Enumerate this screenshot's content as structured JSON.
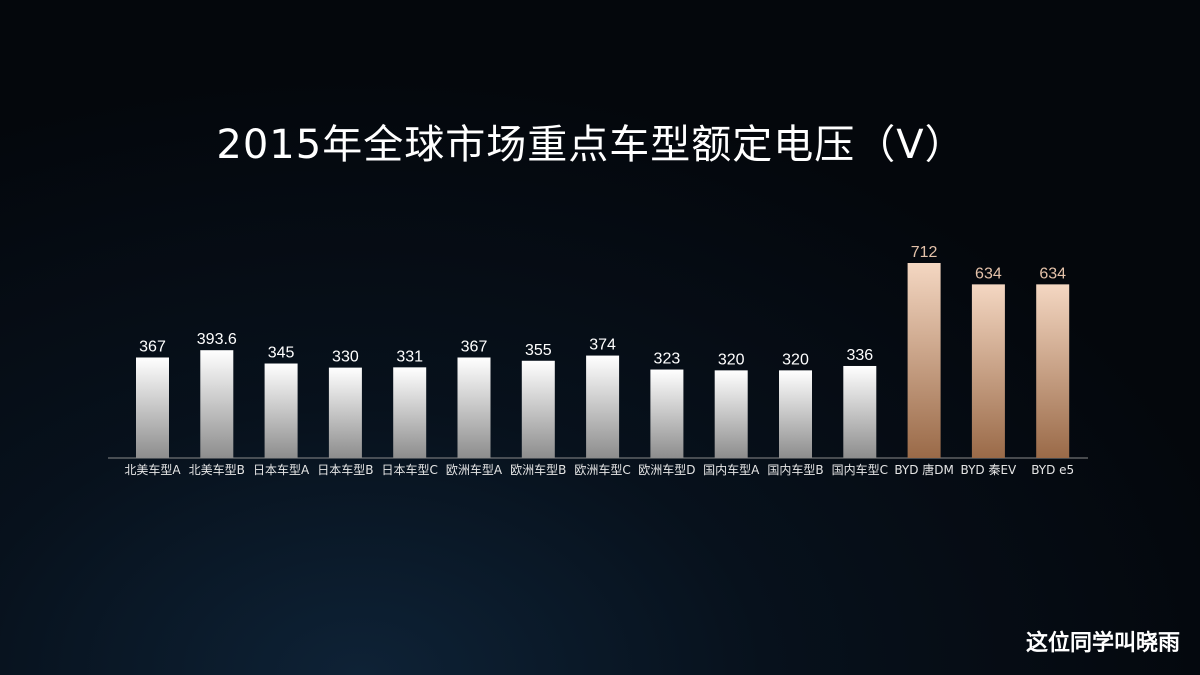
{
  "title": "2015年全球市场重点车型额定电压（V）",
  "watermark": "这位同学叫晓雨",
  "colors": {
    "background": "#05090f",
    "bar_gray_top": "#ffffff",
    "bar_gray_bottom": "#8d8d8d",
    "bar_byd_top": "#f4d7c2",
    "bar_byd_bottom": "#9a6a48",
    "label_gray": "#ffffff",
    "label_byd": "#e4c2aa",
    "baseline": "#8a8a8a"
  },
  "chart_data": {
    "type": "bar",
    "title": "2015年全球市场重点车型额定电压（V）",
    "categories": [
      "北美车型A",
      "北美车型B",
      "日本车型A",
      "日本车型B",
      "日本车型C",
      "欧洲车型A",
      "欧洲车型B",
      "欧洲车型C",
      "欧洲车型D",
      "国内车型A",
      "国内车型B",
      "国内车型C",
      "BYD 唐DM",
      "BYD 秦EV",
      "BYD e5"
    ],
    "values": [
      367,
      393.6,
      345,
      330,
      331,
      367,
      355,
      374,
      323,
      320,
      320,
      336,
      712,
      634,
      634
    ],
    "value_labels": [
      "367",
      "393.6",
      "345",
      "330",
      "331",
      "367",
      "355",
      "374",
      "323",
      "320",
      "320",
      "336",
      "712",
      "634",
      "634"
    ],
    "highlight": [
      false,
      false,
      false,
      false,
      false,
      false,
      false,
      false,
      false,
      false,
      false,
      false,
      true,
      true,
      true
    ],
    "xlabel": "",
    "ylabel": "",
    "ylim": [
      0,
      712
    ],
    "grid": false,
    "legend": "none"
  }
}
